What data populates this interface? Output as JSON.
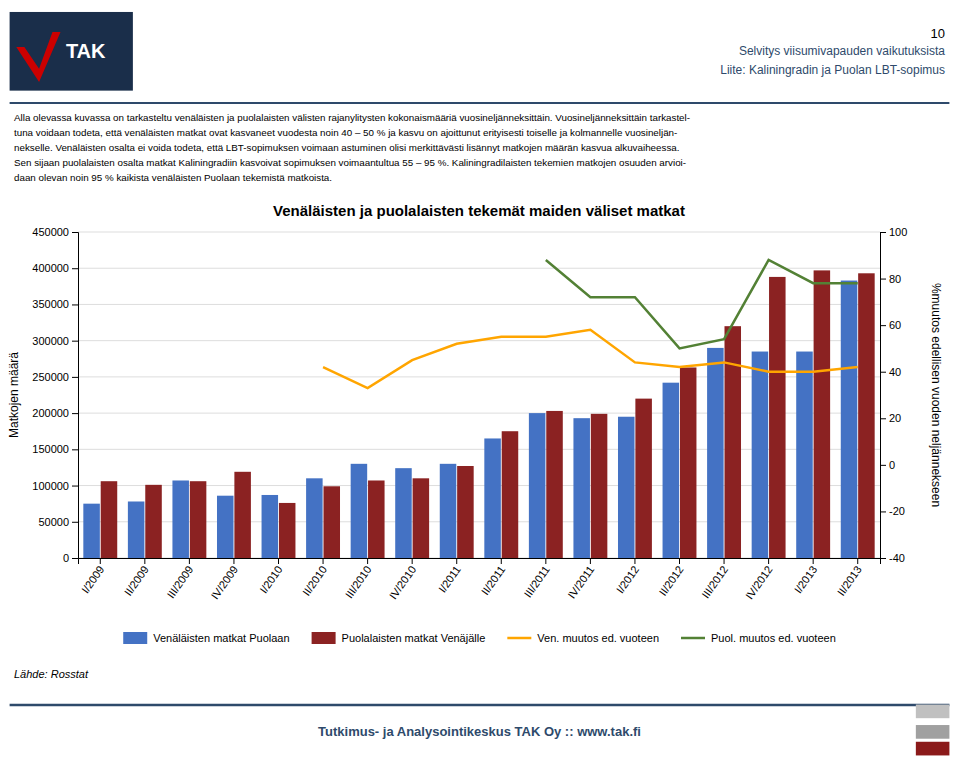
{
  "chart_data": {
    "type": "bar",
    "title": "Venäläisten ja puolalaisten tekemät maiden väliset matkat",
    "categories": [
      "I/2009",
      "II/2009",
      "III/2009",
      "IV/2009",
      "I/2010",
      "II/2010",
      "III/2010",
      "IV/2010",
      "I/2011",
      "II/2011",
      "III/2011",
      "IV/2011",
      "I/2012",
      "II/2012",
      "III/2012",
      "IV/2012",
      "I/2013",
      "II/2013"
    ],
    "series": [
      {
        "name": "Venäläisten matkat Puolaan",
        "type": "bar",
        "color": "#4472C4",
        "values": [
          75000,
          78000,
          107000,
          86000,
          87000,
          110000,
          130000,
          124000,
          130000,
          165000,
          200000,
          193000,
          195000,
          242000,
          290000,
          285000,
          285000,
          383000
        ]
      },
      {
        "name": "Puolalaisten matkat Venäjälle",
        "type": "bar",
        "color": "#8B2222",
        "values": [
          106000,
          101000,
          106000,
          119000,
          76000,
          99000,
          107000,
          110000,
          127000,
          175000,
          203000,
          199000,
          220000,
          263000,
          320000,
          388000,
          397000,
          393000
        ]
      },
      {
        "name": "Ven. muutos ed. vuoteen",
        "type": "line",
        "axis": "y2",
        "color": "#FFA500",
        "values": [
          null,
          null,
          null,
          null,
          null,
          42,
          33,
          45,
          52,
          55,
          55,
          58,
          44,
          42,
          44,
          40,
          40,
          42
        ]
      },
      {
        "name": "Puol. muutos ed. vuoteen",
        "type": "line",
        "axis": "y2",
        "color": "#538135",
        "values": [
          null,
          null,
          null,
          null,
          null,
          null,
          null,
          null,
          null,
          null,
          88,
          72,
          72,
          50,
          54,
          88,
          78,
          78
        ]
      }
    ],
    "ylabel": "Matkojen määrä",
    "y2label": "%muutos edellisen vuoden neljännekseen",
    "ylim": [
      0,
      450000
    ],
    "yticks": [
      0,
      50000,
      100000,
      150000,
      200000,
      250000,
      300000,
      350000,
      400000,
      450000
    ],
    "y2lim": [
      -40,
      100
    ],
    "y2ticks": [
      -40,
      -20,
      0,
      20,
      40,
      60,
      80,
      100
    ],
    "grid": true,
    "legend": "bottom"
  },
  "page_number": "10",
  "header": [
    "Selvitys viisumivapauden vaikutuksista",
    "Liite: Kaliningradin ja Puolan LBT-sopimus"
  ],
  "logo_text": "TAK",
  "body_text": [
    "Alla olevassa kuvassa on tarkasteltu venäläisten ja puolalaisten välisten rajanylitysten kokonaismääriä vuosineljänneksittäin. Vuosineljänneksittäin tarkastel-",
    "tuna voidaan todeta, että venäläisten matkat ovat kasvaneet vuodesta noin 40 – 50 % ja kasvu on ajoittunut erityisesti toiselle ja kolmannelle vuosineljän-",
    "nekselle. Venäläisten osalta ei voida todeta, että LBT-sopimuksen voimaan astuminen olisi merkittävästi lisännyt matkojen määrän kasvua alkuvaiheessa.",
    "Sen sijaan puolalaisten osalta matkat Kaliningradiin kasvoivat sopimuksen voimaantultua 55 – 95 %. Kaliningradilaisten tekemien matkojen osuuden arvioi-",
    "daan olevan noin 95 % kaikista venäläisten Puolaan tekemistä matkoista."
  ],
  "source_text": "Lähde: Rosstat",
  "footer_text": "Tutkimus- ja Analysointikeskus TAK Oy   ::   www.tak.fi"
}
